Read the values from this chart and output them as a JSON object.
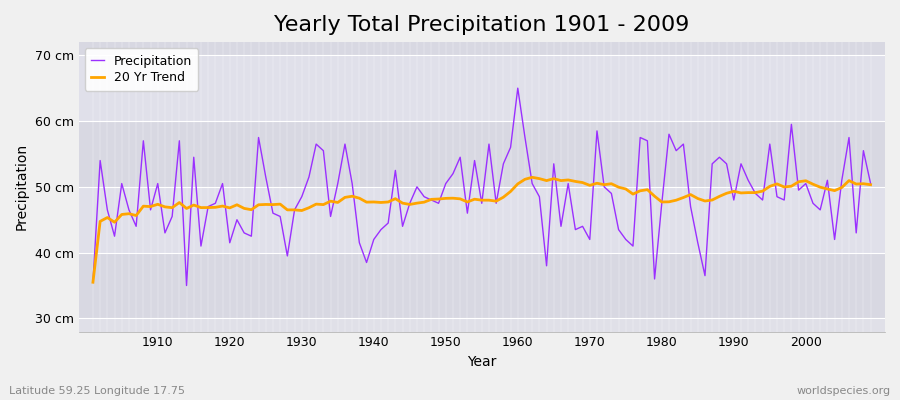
{
  "title": "Yearly Total Precipitation 1901 - 2009",
  "xlabel": "Year",
  "ylabel": "Precipitation",
  "subtitle": "Latitude 59.25 Longitude 17.75",
  "watermark": "worldspecies.org",
  "years": [
    1901,
    1902,
    1903,
    1904,
    1905,
    1906,
    1907,
    1908,
    1909,
    1910,
    1911,
    1912,
    1913,
    1914,
    1915,
    1916,
    1917,
    1918,
    1919,
    1920,
    1921,
    1922,
    1923,
    1924,
    1925,
    1926,
    1927,
    1928,
    1929,
    1930,
    1931,
    1932,
    1933,
    1934,
    1935,
    1936,
    1937,
    1938,
    1939,
    1940,
    1941,
    1942,
    1943,
    1944,
    1945,
    1946,
    1947,
    1948,
    1949,
    1950,
    1951,
    1952,
    1953,
    1954,
    1955,
    1956,
    1957,
    1958,
    1959,
    1960,
    1961,
    1962,
    1963,
    1964,
    1965,
    1966,
    1967,
    1968,
    1969,
    1970,
    1971,
    1972,
    1973,
    1974,
    1975,
    1976,
    1977,
    1978,
    1979,
    1980,
    1981,
    1982,
    1983,
    1984,
    1985,
    1986,
    1987,
    1988,
    1989,
    1990,
    1991,
    1992,
    1993,
    1994,
    1995,
    1996,
    1997,
    1998,
    1999,
    2000,
    2001,
    2002,
    2003,
    2004,
    2005,
    2006,
    2007,
    2008,
    2009
  ],
  "precipitation": [
    35.5,
    54.0,
    46.5,
    42.5,
    50.5,
    46.5,
    44.0,
    57.0,
    46.5,
    50.5,
    43.0,
    45.5,
    57.0,
    35.0,
    54.5,
    41.0,
    47.0,
    47.5,
    50.5,
    41.5,
    45.0,
    43.0,
    42.5,
    57.5,
    51.5,
    46.0,
    45.5,
    39.5,
    46.5,
    48.5,
    51.5,
    56.5,
    55.5,
    45.5,
    50.5,
    56.5,
    50.5,
    41.5,
    38.5,
    42.0,
    43.5,
    44.5,
    52.5,
    44.0,
    47.5,
    50.0,
    48.5,
    48.0,
    47.5,
    50.5,
    52.0,
    54.5,
    46.0,
    54.0,
    47.5,
    56.5,
    47.5,
    53.5,
    56.0,
    65.0,
    57.5,
    50.5,
    48.5,
    38.0,
    53.5,
    44.0,
    50.5,
    43.5,
    44.0,
    42.0,
    58.5,
    50.0,
    49.0,
    43.5,
    42.0,
    41.0,
    57.5,
    57.0,
    36.0,
    47.5,
    58.0,
    55.5,
    56.5,
    47.0,
    41.5,
    36.5,
    53.5,
    54.5,
    53.5,
    48.0,
    53.5,
    51.0,
    49.0,
    48.0,
    56.5,
    48.5,
    48.0,
    59.5,
    49.5,
    50.5,
    47.5,
    46.5,
    51.0,
    42.0,
    51.0,
    57.5,
    43.0,
    55.5,
    50.5
  ],
  "ylim": [
    28,
    72
  ],
  "yticks": [
    30,
    40,
    50,
    60,
    70
  ],
  "ytick_labels": [
    "30 cm",
    "40 cm",
    "50 cm",
    "60 cm",
    "70 cm"
  ],
  "xlim": [
    1899,
    2011
  ],
  "xticks": [
    1910,
    1920,
    1930,
    1940,
    1950,
    1960,
    1970,
    1980,
    1990,
    2000
  ],
  "precip_color": "#9B30FF",
  "trend_color": "#FFA500",
  "bg_color": "#F0F0F0",
  "plot_bg_upper": "#E8E8F0",
  "plot_bg_lower": "#D8D8E0",
  "grid_color": "#FFFFFF",
  "title_fontsize": 16,
  "label_fontsize": 10,
  "tick_fontsize": 9,
  "legend_fontsize": 9,
  "trend_window": 20,
  "band_colors": [
    "#E2E2EA",
    "#D2D2DC"
  ],
  "band_boundaries": [
    28,
    30,
    40,
    50,
    60,
    70,
    72
  ]
}
